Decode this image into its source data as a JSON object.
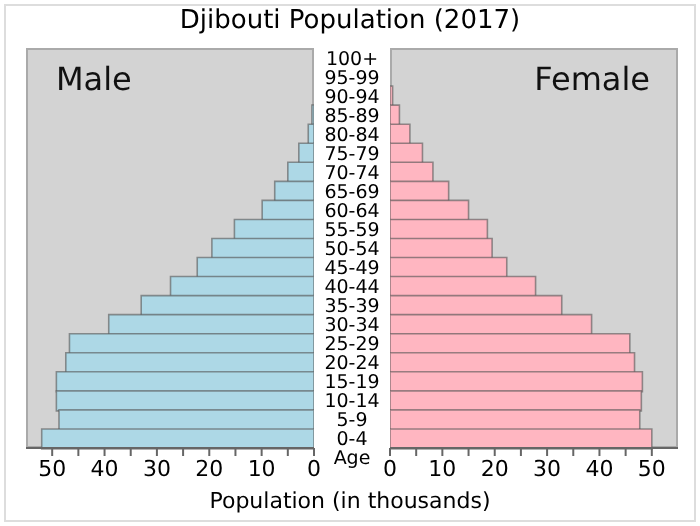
{
  "chart_data": [
    {
      "type": "bar",
      "orientation": "horizontal",
      "title": "Djibouti Population (2017)",
      "xlabel": "Population (in thousands)",
      "tick_labels": "x",
      "categories": [
        "100+",
        "95-99",
        "90-94",
        "85-89",
        "80-84",
        "75-79",
        "70-74",
        "65-69",
        "60-64",
        "55-59",
        "50-54",
        "45-49",
        "40-44",
        "35-39",
        "30-34",
        "25-29",
        "20-24",
        "15-19",
        "10-14",
        "5-9",
        "0-4"
      ],
      "series": [
        {
          "name": "Male",
          "color": "#add8e6",
          "values": [
            0,
            0,
            null,
            0.4,
            1.1,
            2.9,
            5,
            7.5,
            9.9,
            15.2,
            19.5,
            22.3,
            27.4,
            33,
            39.2,
            46.7,
            47.4,
            49.2,
            49.2,
            48.7,
            52
          ]
        }
      ],
      "xlim": [
        55,
        0
      ],
      "xticks": [
        50,
        {
          "value": 45,
          "label": null
        },
        40,
        {
          "value": 35,
          "label": null
        },
        30,
        {
          "value": 25,
          "label": null
        },
        20,
        {
          "value": 15,
          "label": null
        },
        10,
        {
          "value": 5,
          "label": null
        },
        0
      ]
    },
    {
      "type": "bar",
      "orientation": "horizontal",
      "ylabel": "Age",
      "categories": [
        "100+",
        "95-99",
        "90-94",
        "85-89",
        "80-84",
        "75-79",
        "70-74",
        "65-69",
        "60-64",
        "55-59",
        "50-54",
        "45-49",
        "40-44",
        "35-39",
        "30-34",
        "25-29",
        "20-24",
        "15-19",
        "10-14",
        "5-9",
        "0-4"
      ],
      "series": [
        {
          "name": "Female",
          "color": "#ffb6c1",
          "values": [
            0,
            null,
            0.5,
            1.8,
            3.8,
            6.2,
            8.2,
            11.2,
            15,
            18.6,
            19.5,
            22.3,
            27.8,
            32.8,
            38.5,
            45.8,
            46.7,
            48.2,
            48,
            47.7,
            50
          ]
        }
      ],
      "xlim": [
        0,
        55
      ],
      "xticks": [
        0,
        {
          "value": 5,
          "label": null
        },
        10,
        {
          "value": 15,
          "label": null
        },
        20,
        {
          "value": 25,
          "label": null
        },
        30,
        {
          "value": 35,
          "label": null
        },
        40,
        {
          "value": 45,
          "label": null
        },
        50
      ]
    }
  ]
}
